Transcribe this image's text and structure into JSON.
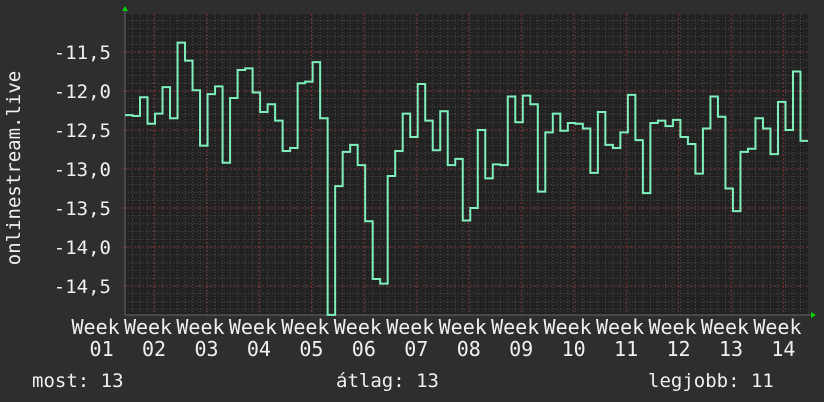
{
  "chart_data": {
    "type": "line",
    "style": "step",
    "title": "",
    "ylabel": "onlinestream.live",
    "xlabel": "",
    "ylim": [
      -14.87,
      -11.01
    ],
    "yticks": [
      -11.5,
      -12.0,
      -12.5,
      -13.0,
      -13.5,
      -14.0,
      -14.5
    ],
    "ytick_labels": [
      "-11,5",
      "-12,0",
      "-12,5",
      "-13,0",
      "-13,5",
      "-14,0",
      "-14,5"
    ],
    "xtick_labels": [
      "Week 01",
      "Week 02",
      "Week 03",
      "Week 04",
      "Week 05",
      "Week 06",
      "Week 07",
      "Week 08",
      "Week 09",
      "Week 10",
      "Week 11",
      "Week 12",
      "Week 13",
      "Week 14"
    ],
    "grid": true,
    "values": [
      -12.31,
      -12.32,
      -12.08,
      -12.42,
      -12.29,
      -11.95,
      -12.35,
      -11.38,
      -11.61,
      -11.99,
      -12.7,
      -12.04,
      -11.94,
      -12.92,
      -12.09,
      -11.73,
      -11.71,
      -12.02,
      -12.27,
      -12.17,
      -12.38,
      -12.77,
      -12.73,
      -11.9,
      -11.88,
      -11.63,
      -12.35,
      -14.87,
      -13.22,
      -12.78,
      -12.69,
      -12.95,
      -13.67,
      -14.41,
      -14.47,
      -13.09,
      -12.77,
      -12.29,
      -12.59,
      -11.91,
      -12.38,
      -12.76,
      -12.26,
      -12.95,
      -12.87,
      -13.66,
      -13.5,
      -12.5,
      -13.12,
      -12.94,
      -12.95,
      -12.07,
      -12.4,
      -12.06,
      -12.17,
      -13.29,
      -12.53,
      -12.29,
      -12.51,
      -12.41,
      -12.42,
      -12.48,
      -13.05,
      -12.27,
      -12.69,
      -12.73,
      -12.53,
      -12.05,
      -12.63,
      -13.31,
      -12.41,
      -12.38,
      -12.45,
      -12.37,
      -12.59,
      -12.68,
      -13.06,
      -12.48,
      -12.07,
      -12.33,
      -13.25,
      -13.54,
      -12.78,
      -12.74,
      -12.35,
      -12.48,
      -12.81,
      -12.14,
      -12.5,
      -11.75,
      -12.64
    ],
    "colors": {
      "line": "#7ff0bc",
      "background": "#2e2e2e",
      "plot_background": "#222222",
      "minor_grid": "#4a4a4a",
      "major_grid": "#7a3030",
      "arrow": "#00d000"
    }
  },
  "legend": {
    "current": "most: 13",
    "average": "átlag: 13",
    "max": "legjobb: 11"
  }
}
